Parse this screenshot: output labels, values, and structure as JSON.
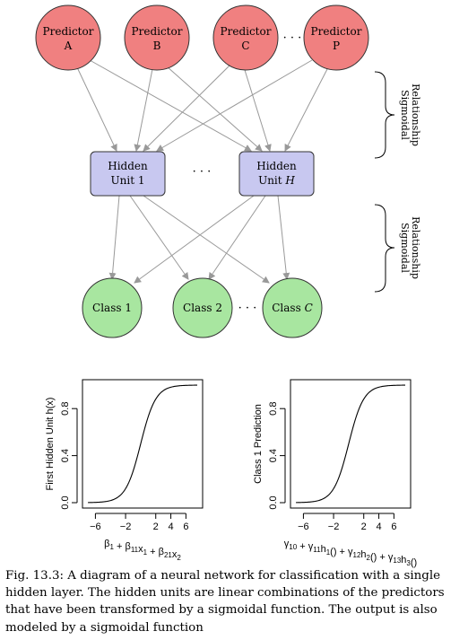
{
  "colors": {
    "predictor_fill": "#f08080",
    "hidden_fill": "#c8c8f0",
    "class_fill": "#a8e6a0",
    "edge": "#999999",
    "curve": "#000000"
  },
  "network": {
    "predictors": [
      {
        "line1": "Predictor",
        "line2": "A"
      },
      {
        "line1": "Predictor",
        "line2": "B"
      },
      {
        "line1": "Predictor",
        "line2": "C"
      },
      {
        "line1": "Predictor",
        "line2": "P"
      }
    ],
    "hidden": [
      {
        "line1": "Hidden",
        "line2": "Unit 1"
      },
      {
        "line1": "Hidden",
        "line2": "Unit ",
        "line2_italic": "H"
      }
    ],
    "classes": [
      {
        "text": "Class 1",
        "italic": ""
      },
      {
        "text": "Class 2",
        "italic": ""
      },
      {
        "text": "Class ",
        "italic": "C"
      }
    ],
    "ellipsis": "· · ·",
    "braces": [
      {
        "label_line1": "Sigmoidal",
        "label_line2": "Relationship"
      },
      {
        "label_line1": "Sigmoidal",
        "label_line2": "Relationship"
      }
    ]
  },
  "chart_data": [
    {
      "type": "line",
      "ylabel": "First Hidden Unit h(x)",
      "xlabel": "β1 + β11x1 + β21x2",
      "xlim": [
        -7,
        7.5
      ],
      "ylim": [
        0,
        1
      ],
      "x_ticks": [
        -6,
        -2,
        2,
        4,
        6
      ],
      "x_tick_labels": [
        "−6",
        "−2",
        "2",
        "4",
        "6"
      ],
      "y_ticks": [
        0.0,
        0.4,
        0.8
      ],
      "y_tick_labels": [
        "0.0",
        "0.4",
        "0.8"
      ],
      "curve": "logistic",
      "x": [
        -6,
        -4,
        -3,
        -2,
        -1,
        0,
        1,
        2,
        3,
        4,
        6
      ],
      "y": [
        0.0025,
        0.018,
        0.047,
        0.119,
        0.269,
        0.5,
        0.731,
        0.881,
        0.953,
        0.982,
        0.9975
      ]
    },
    {
      "type": "line",
      "ylabel": "Class 1 Prediction",
      "xlabel": "γ10 + γ11h1(x) + γ12h2(x) + γ13h3(x)",
      "xlim": [
        -7,
        7.5
      ],
      "ylim": [
        0,
        1
      ],
      "x_ticks": [
        -6,
        -2,
        2,
        4,
        6
      ],
      "x_tick_labels": [
        "−6",
        "−2",
        "2",
        "4",
        "6"
      ],
      "y_ticks": [
        0.0,
        0.4,
        0.8
      ],
      "y_tick_labels": [
        "0.0",
        "0.4",
        "0.8"
      ],
      "curve": "logistic",
      "x": [
        -6,
        -4,
        -3,
        -2,
        -1,
        0,
        1,
        2,
        3,
        4,
        6
      ],
      "y": [
        0.0025,
        0.018,
        0.047,
        0.119,
        0.269,
        0.5,
        0.731,
        0.881,
        0.953,
        0.982,
        0.9975
      ]
    }
  ],
  "caption": {
    "text": "Fig. 13.3: A diagram of a neural network for classification with a single hidden layer. The hidden units are linear combinations of the predictors that have been transformed by a sigmoidal function. The output is also modeled by a sigmoidal function"
  }
}
